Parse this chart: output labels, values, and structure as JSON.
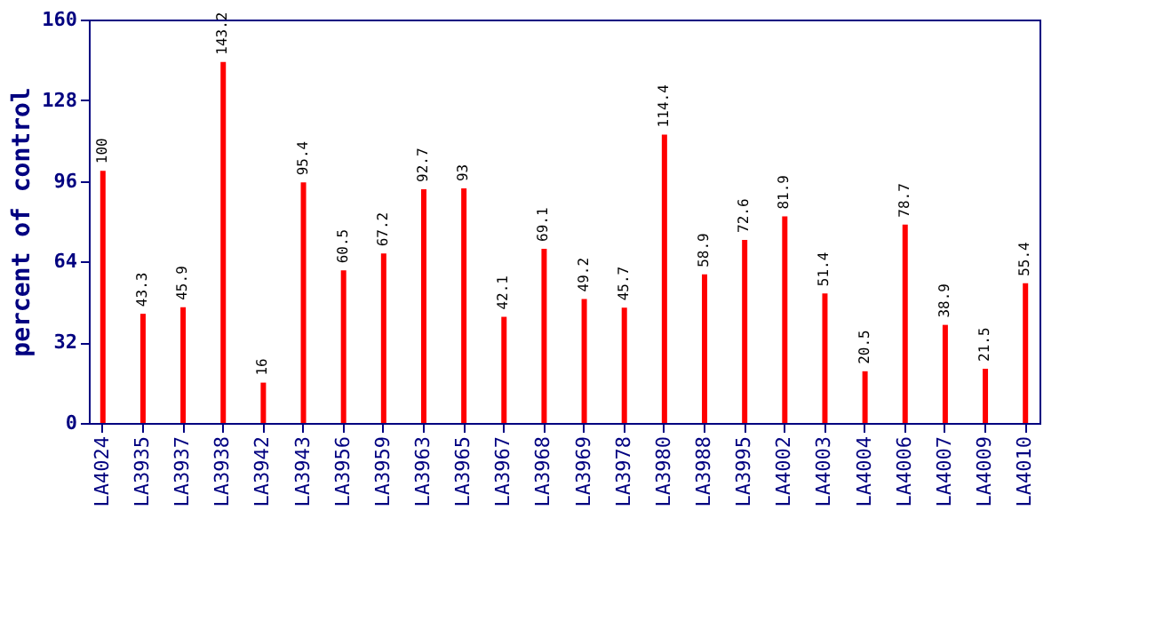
{
  "chart_data": {
    "type": "bar",
    "ylabel": "percent of control",
    "categories": [
      "LA4024",
      "LA3935",
      "LA3937",
      "LA3938",
      "LA3942",
      "LA3943",
      "LA3956",
      "LA3959",
      "LA3963",
      "LA3965",
      "LA3967",
      "LA3968",
      "LA3969",
      "LA3978",
      "LA3980",
      "LA3988",
      "LA3995",
      "LA4002",
      "LA4003",
      "LA4004",
      "LA4006",
      "LA4007",
      "LA4009",
      "LA4010"
    ],
    "values": [
      100,
      43.3,
      45.9,
      143.2,
      16,
      95.4,
      60.5,
      67.2,
      92.7,
      93,
      42.1,
      69.1,
      49.2,
      45.7,
      114.4,
      58.9,
      72.6,
      81.9,
      51.4,
      20.5,
      78.7,
      38.9,
      21.5,
      55.4
    ],
    "color": "#ff0000",
    "ylim": [
      0,
      160
    ],
    "yticks": [
      0,
      32,
      64,
      96,
      128,
      160
    ],
    "grid": false,
    "data_labels": true
  }
}
